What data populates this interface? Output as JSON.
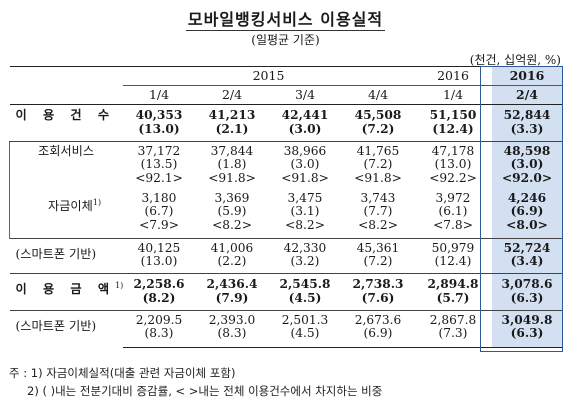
{
  "title": "모바일뱅킹서비스 이용실적",
  "subtitle": "(일평균 기준)",
  "unit": "(천건, 십억원, %)",
  "header": {
    "years": [
      "2015",
      "2016",
      "2016"
    ],
    "quarters": [
      "1/4",
      "2/4",
      "3/4",
      "4/4",
      "1/4",
      "2/4"
    ]
  },
  "rows": {
    "usage_count": {
      "label": "이 용 건 수",
      "values": [
        "40,353",
        "41,213",
        "42,441",
        "45,508",
        "51,150",
        "52,844"
      ],
      "growth": [
        "(13.0)",
        "(2.1)",
        "(3.0)",
        "(7.2)",
        "(12.4)",
        "(3.3)"
      ]
    },
    "inquiry": {
      "label": "조회서비스",
      "values": [
        "37,172",
        "37,844",
        "38,966",
        "41,765",
        "47,178",
        "48,598"
      ],
      "growth": [
        "(13.5)",
        "(1.8)",
        "(3.0)",
        "(7.2)",
        "(13.0)",
        "(3.0)"
      ],
      "share": [
        "<92.1>",
        "<91.8>",
        "<91.8>",
        "<91.8>",
        "<92.2>",
        "<92.0>"
      ]
    },
    "transfer": {
      "label": "자금이체",
      "note": "1)",
      "values": [
        "3,180",
        "3,369",
        "3,475",
        "3,743",
        "3,972",
        "4,246"
      ],
      "growth": [
        "(6.7)",
        "(5.9)",
        "(3.1)",
        "(7.7)",
        "(6.1)",
        "(6.9)"
      ],
      "share": [
        "<7.9>",
        "<8.2>",
        "<8.2>",
        "<8.2>",
        "<7.8>",
        "<8.0>"
      ]
    },
    "smartphone_count": {
      "label": "(스마트폰 기반)",
      "values": [
        "40,125",
        "41,006",
        "42,330",
        "45,361",
        "50,979",
        "52,724"
      ],
      "growth": [
        "(13.0)",
        "(2.2)",
        "(3.2)",
        "(7.2)",
        "(12.4)",
        "(3.4)"
      ]
    },
    "usage_amount": {
      "label": "이 용 금 액",
      "note": "1)",
      "values": [
        "2,258.6",
        "2,436.4",
        "2,545.8",
        "2,738.3",
        "2,894.8",
        "3,078.6"
      ],
      "growth": [
        "(8.2)",
        "(7.9)",
        "(4.5)",
        "(7.6)",
        "(5.7)",
        "(6.3)"
      ]
    },
    "smartphone_amount": {
      "label": "(스마트폰 기반)",
      "values": [
        "2,209.5",
        "2,393.0",
        "2,501.3",
        "2,673.6",
        "2,867.8",
        "3,049.8"
      ],
      "growth": [
        "(8.3)",
        "(8.3)",
        "(4.5)",
        "(6.9)",
        "(7.3)",
        "(6.3)"
      ]
    }
  },
  "notes": [
    "주 : 1) 자금이체실적(대출 관련 자금이체 포함)",
    "2) ( )내는 전분기대비 증감률, < >내는 전체 이용건수에서 차지하는 비중"
  ],
  "colors": {
    "highlight_bg": "#d3e0f1",
    "highlight_border": "#2c5a99"
  }
}
